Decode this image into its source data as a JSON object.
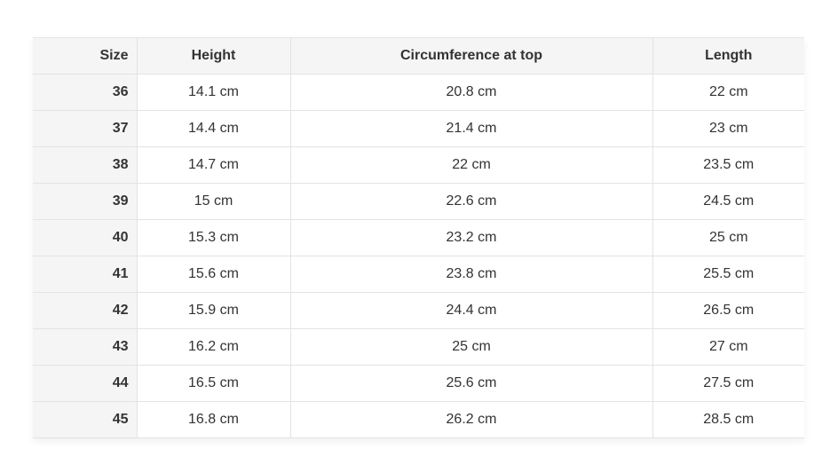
{
  "table": {
    "headers": {
      "size": "Size",
      "height": "Height",
      "circumference": "Circumference at top",
      "length": "Length"
    },
    "rows": [
      {
        "size": "36",
        "height": "14.1 cm",
        "circumference": "20.8 cm",
        "length": "22 cm"
      },
      {
        "size": "37",
        "height": "14.4 cm",
        "circumference": "21.4 cm",
        "length": "23 cm"
      },
      {
        "size": "38",
        "height": "14.7 cm",
        "circumference": "22 cm",
        "length": "23.5 cm"
      },
      {
        "size": "39",
        "height": "15 cm",
        "circumference": "22.6 cm",
        "length": "24.5 cm"
      },
      {
        "size": "40",
        "height": "15.3 cm",
        "circumference": "23.2 cm",
        "length": "25 cm"
      },
      {
        "size": "41",
        "height": "15.6 cm",
        "circumference": "23.8 cm",
        "length": "25.5 cm"
      },
      {
        "size": "42",
        "height": "15.9 cm",
        "circumference": "24.4 cm",
        "length": "26.5 cm"
      },
      {
        "size": "43",
        "height": "16.2 cm",
        "circumference": "25 cm",
        "length": "27 cm"
      },
      {
        "size": "44",
        "height": "16.5 cm",
        "circumference": "25.6 cm",
        "length": "27.5 cm"
      },
      {
        "size": "45",
        "height": "16.8 cm",
        "circumference": "26.2 cm",
        "length": "28.5 cm"
      }
    ]
  }
}
